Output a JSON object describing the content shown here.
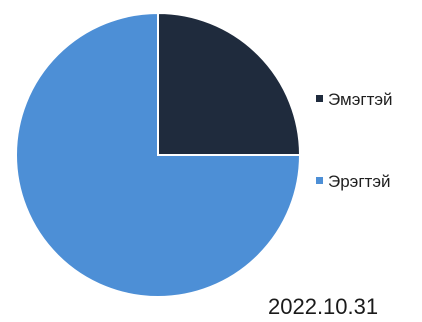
{
  "chart_data": {
    "type": "pie",
    "title": "",
    "slices": [
      {
        "label": "Эмэгтэй",
        "value": 25,
        "color": "#1f2b3d"
      },
      {
        "label": "Эрэгтэй",
        "value": 75,
        "color": "#4d8fd6"
      }
    ],
    "start_angle_deg": 0,
    "direction": "clockwise",
    "legend_position": "right"
  },
  "date_label": "2022.10.31"
}
